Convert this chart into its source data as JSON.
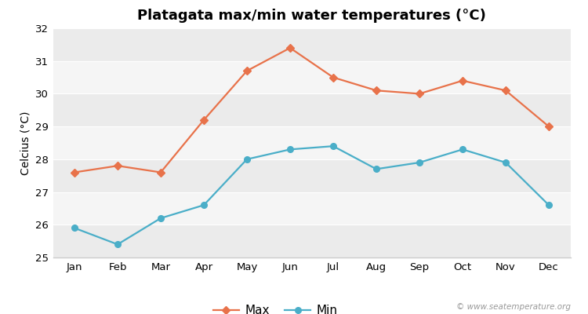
{
  "title": "Platagata max/min water temperatures (°C)",
  "ylabel": "Celcius (°C)",
  "months": [
    "Jan",
    "Feb",
    "Mar",
    "Apr",
    "May",
    "Jun",
    "Jul",
    "Aug",
    "Sep",
    "Oct",
    "Nov",
    "Dec"
  ],
  "max_values": [
    27.6,
    27.8,
    27.6,
    29.2,
    30.7,
    31.4,
    30.5,
    30.1,
    30.0,
    30.4,
    30.1,
    29.0
  ],
  "min_values": [
    25.9,
    25.4,
    26.2,
    26.6,
    28.0,
    28.3,
    28.4,
    27.7,
    27.9,
    28.3,
    27.9,
    26.6
  ],
  "max_color": "#e8724a",
  "min_color": "#4aaec8",
  "ylim": [
    25,
    32
  ],
  "yticks": [
    25,
    26,
    27,
    28,
    29,
    30,
    31,
    32
  ],
  "bg_color": "#ffffff",
  "stripe_colors": [
    "#ebebeb",
    "#f5f5f5"
  ],
  "grid_color": "#ffffff",
  "bottom_spine_color": "#cccccc",
  "watermark": "© www.seatemperature.org",
  "title_fontsize": 13,
  "label_fontsize": 10,
  "tick_fontsize": 9.5,
  "watermark_fontsize": 7.5
}
